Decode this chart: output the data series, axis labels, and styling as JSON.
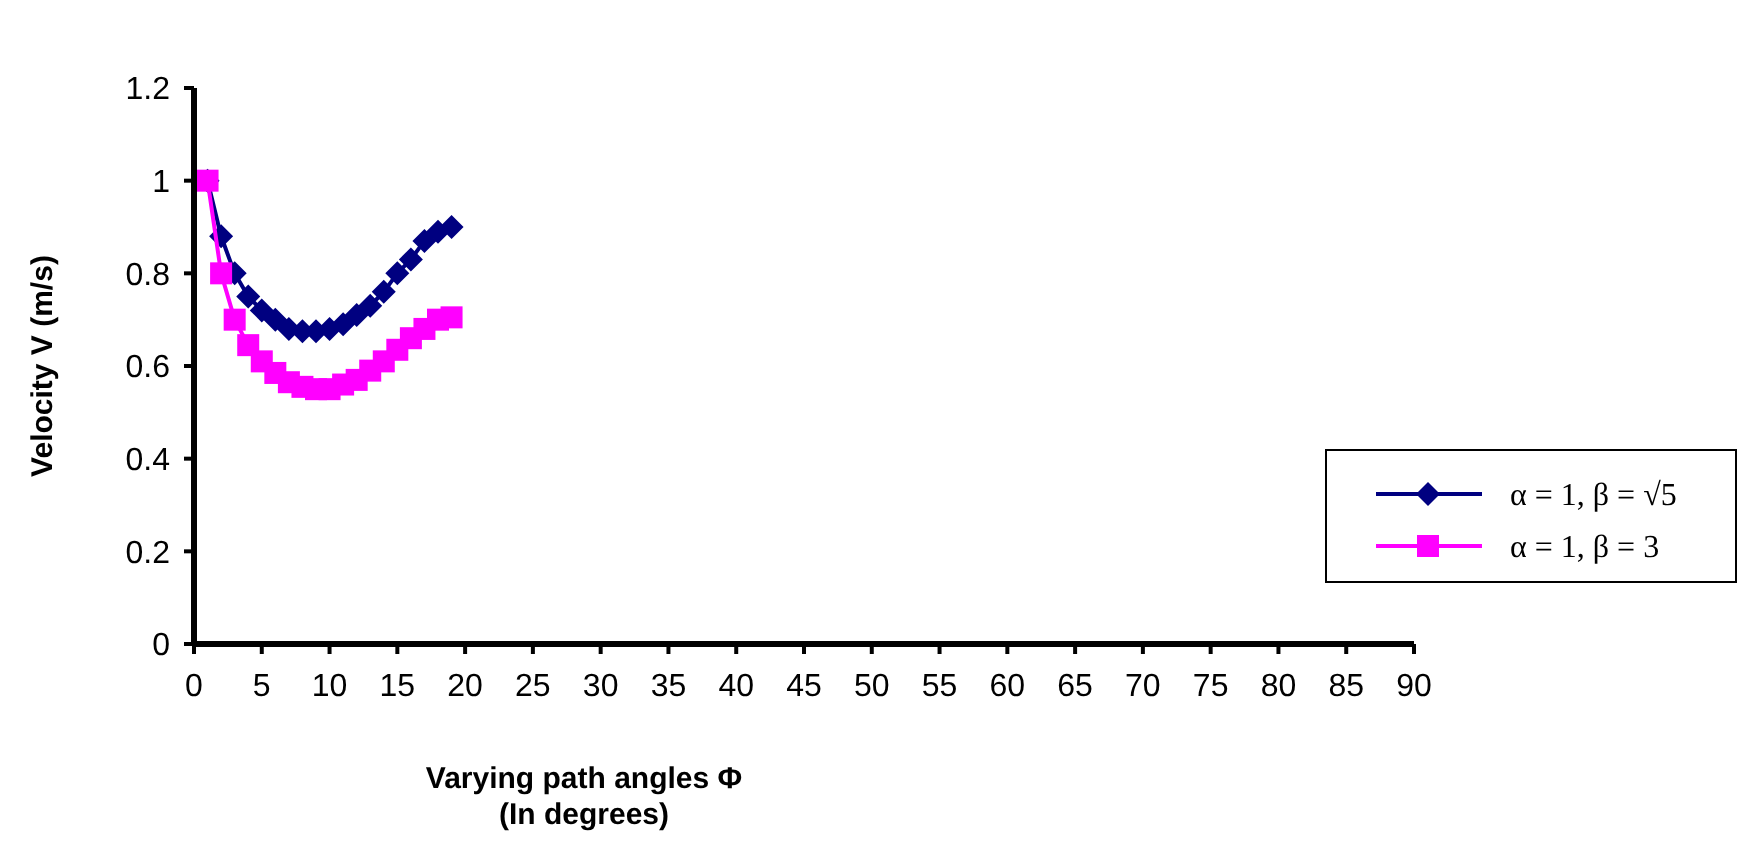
{
  "chart_data": {
    "type": "line",
    "xlabel": "Varying path angles Φ\n(In degrees)",
    "ylabel": "Velocity V (m/s)",
    "x": [
      1,
      2,
      3,
      4,
      5,
      6,
      7,
      8,
      9,
      10,
      11,
      12,
      13,
      14,
      15,
      16,
      17,
      18,
      19
    ],
    "xlim": [
      0,
      90
    ],
    "xticks": [
      0,
      5,
      10,
      15,
      20,
      25,
      30,
      35,
      40,
      45,
      50,
      55,
      60,
      65,
      70,
      75,
      80,
      85,
      90
    ],
    "ylim": [
      0,
      1.2
    ],
    "yticks": [
      0,
      0.2,
      0.4,
      0.6,
      0.8,
      1,
      1.2
    ],
    "grid": false,
    "legend": "right",
    "series": [
      {
        "name": "α = 1, β = √5",
        "color": "#000080",
        "marker": "diamond",
        "values": [
          1,
          0.88,
          0.8,
          0.75,
          0.72,
          0.7,
          0.68,
          0.675,
          0.675,
          0.68,
          0.69,
          0.71,
          0.73,
          0.76,
          0.8,
          0.83,
          0.87,
          0.89,
          0.9
        ]
      },
      {
        "name": "α = 1, β = 3",
        "color": "#ff00ff",
        "marker": "square",
        "values": [
          1,
          0.8,
          0.7,
          0.645,
          0.61,
          0.585,
          0.565,
          0.555,
          0.55,
          0.55,
          0.56,
          0.57,
          0.59,
          0.61,
          0.635,
          0.66,
          0.68,
          0.7,
          0.705
        ]
      }
    ]
  }
}
